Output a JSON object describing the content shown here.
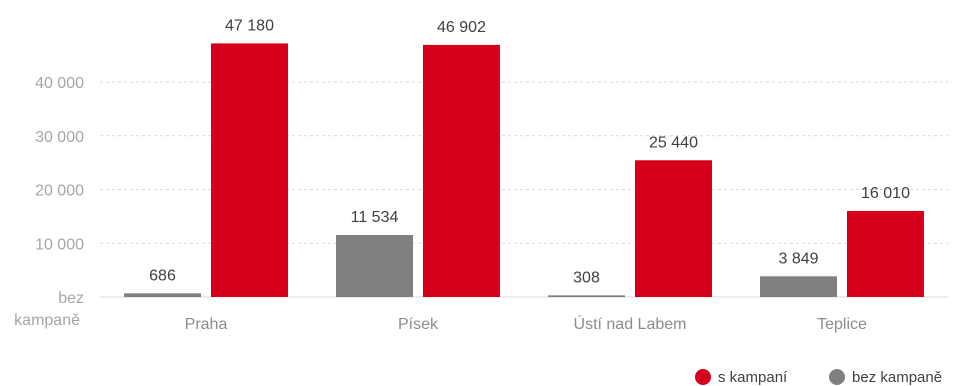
{
  "chart_data": {
    "type": "bar",
    "categories": [
      "Praha",
      "Písek",
      "Ústí nad Labem",
      "Teplice"
    ],
    "series": [
      {
        "name": "bez kampaně",
        "values": [
          686,
          11534,
          308,
          3849
        ],
        "labels": [
          "686",
          "11 534",
          "308",
          "3 849"
        ],
        "color": "#808080"
      },
      {
        "name": "s kampaní",
        "values": [
          47180,
          46902,
          25440,
          16010
        ],
        "labels": [
          "47 180",
          "46 902",
          "25 440",
          "16 010"
        ],
        "color": "#d6001c"
      }
    ],
    "y_ticks": [
      {
        "value": 10000,
        "label": "10 000"
      },
      {
        "value": 20000,
        "label": "20 000"
      },
      {
        "value": 30000,
        "label": "30 000"
      },
      {
        "value": 40000,
        "label": "40 000"
      }
    ],
    "baseline_label": [
      "bez",
      "kampaně"
    ],
    "ylim": [
      0,
      48000
    ],
    "grid": true,
    "legend": {
      "placement": "bottom-right",
      "order": [
        "s kampaní",
        "bez kampaně"
      ]
    },
    "title": "",
    "xlabel": "",
    "ylabel": ""
  }
}
